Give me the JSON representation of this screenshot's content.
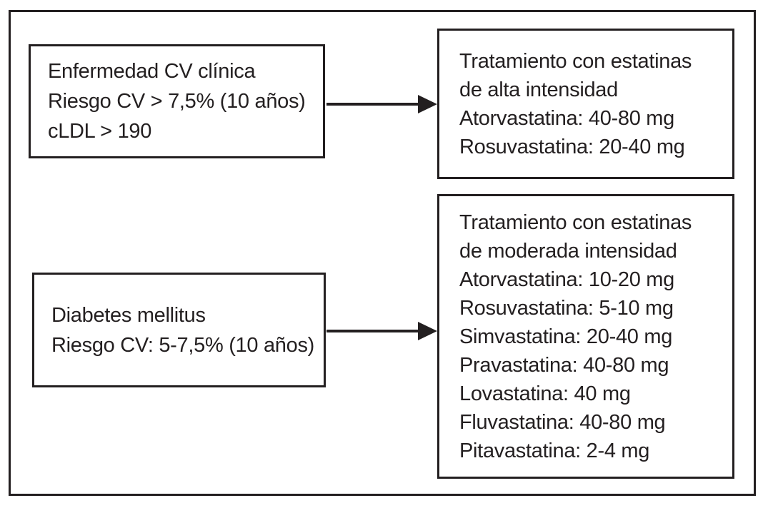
{
  "diagram": {
    "description": "Flowchart of cardiovascular risk conditions mapped to statin treatment intensity",
    "colors": {
      "ink": "#231f20",
      "background": "#ffffff"
    },
    "boxes": [
      {
        "id": "condition-high-risk",
        "lines": [
          "Enfermedad CV clínica",
          "Riesgo CV > 7,5% (10 años)",
          "cLDL > 190"
        ]
      },
      {
        "id": "treatment-high-intensity",
        "lines": [
          "Tratamiento con estatinas",
          "de alta intensidad",
          "Atorvastatina: 40-80 mg",
          "Rosuvastatina: 20-40 mg"
        ]
      },
      {
        "id": "condition-moderate-risk",
        "lines": [
          "Diabetes mellitus",
          "Riesgo CV: 5-7,5% (10 años)"
        ]
      },
      {
        "id": "treatment-moderate-intensity",
        "lines": [
          "Tratamiento con estatinas",
          "de moderada intensidad",
          "Atorvastatina: 10-20 mg",
          "Rosuvastatina: 5-10 mg",
          "Simvastatina: 20-40 mg",
          "Pravastatina: 40-80 mg",
          "Lovastatina: 40 mg",
          "Fluvastatina: 40-80 mg",
          "Pitavastatina: 2-4 mg"
        ]
      }
    ],
    "arrows": [
      {
        "from": "condition-high-risk",
        "to": "treatment-high-intensity"
      },
      {
        "from": "condition-moderate-risk",
        "to": "treatment-moderate-intensity"
      }
    ]
  }
}
